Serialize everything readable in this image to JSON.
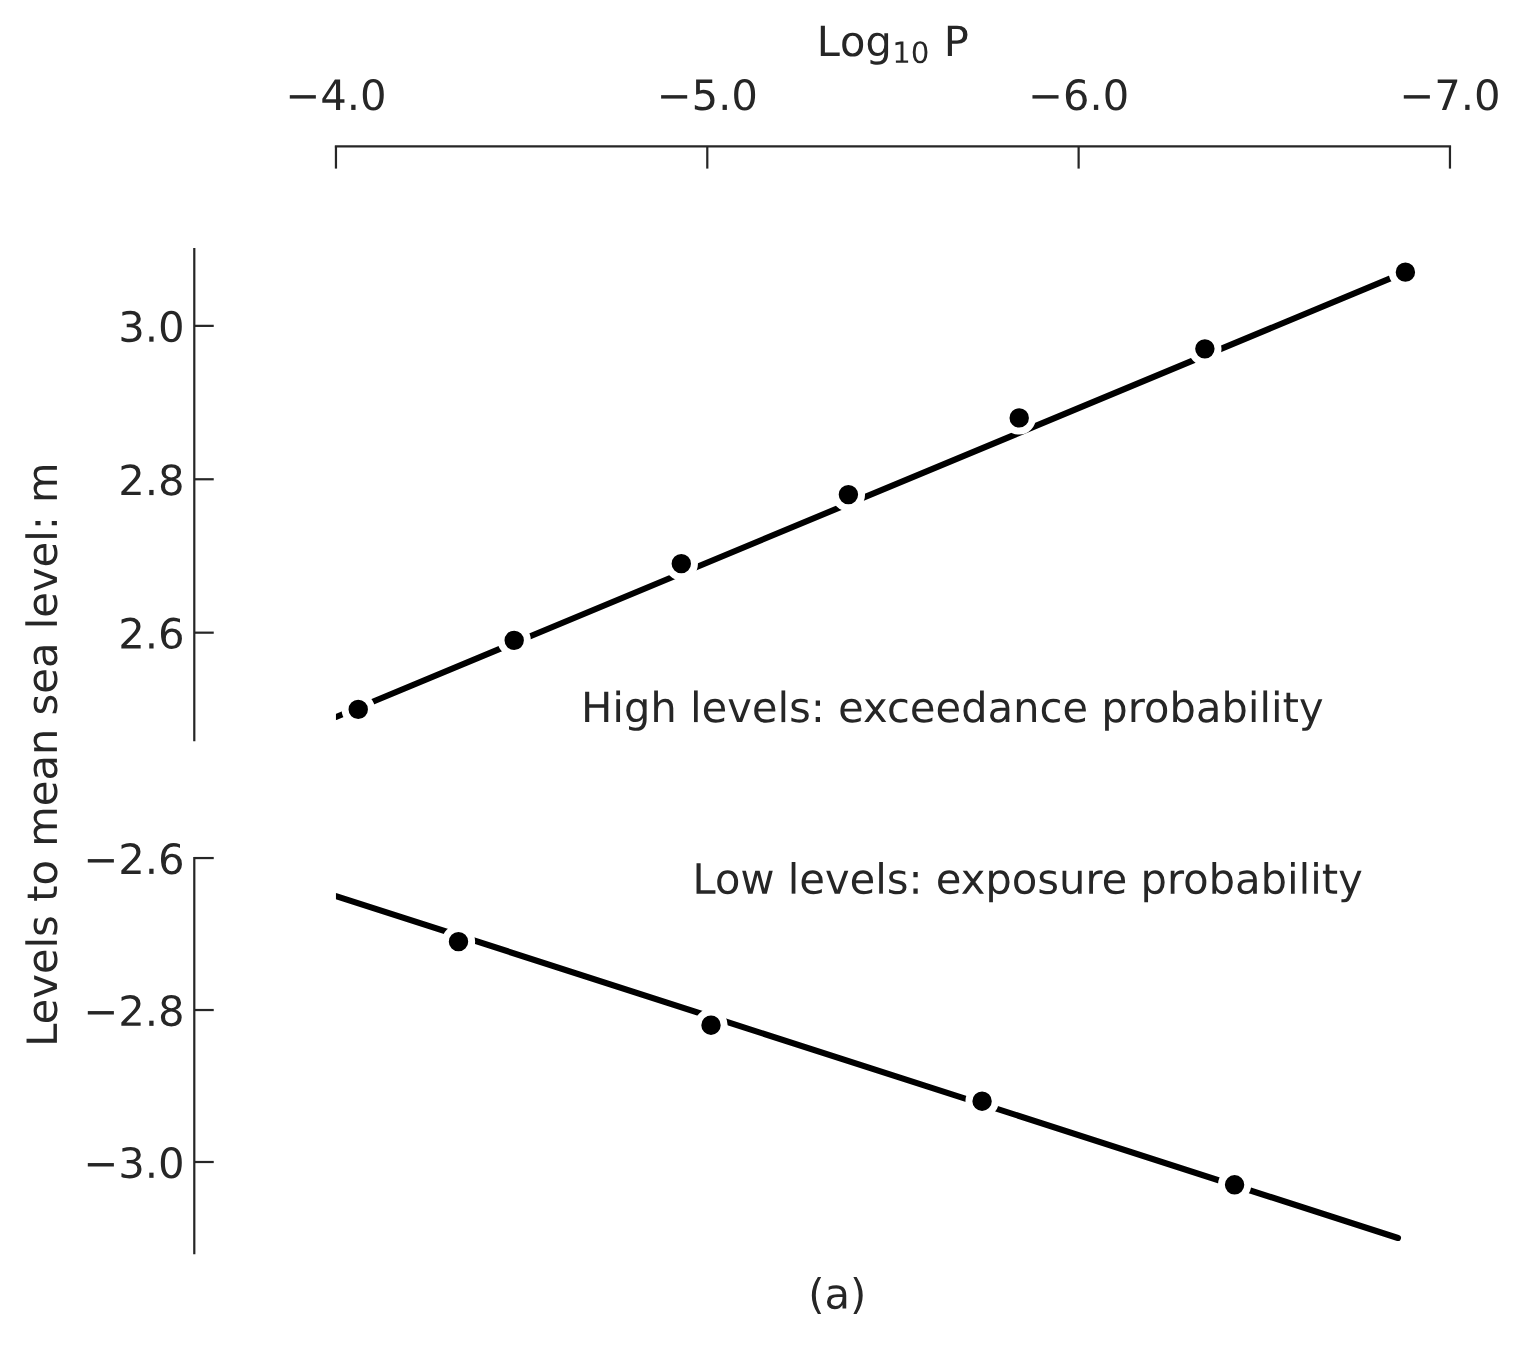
{
  "chart_data": [
    {
      "type": "scatter",
      "xlabel": "Log$_{10}$ P",
      "ylabel": "Levels to mean sea level: m",
      "xlim": [
        -4.0,
        -7.0
      ],
      "xticks": [
        {
          "value": -4.0,
          "label": "−4.0"
        },
        {
          "value": -5.0,
          "label": "−5.0"
        },
        {
          "value": -6.0,
          "label": "−6.0"
        },
        {
          "value": -7.0,
          "label": "−7.0"
        }
      ],
      "ylim": [
        2.46,
        3.1
      ],
      "yticks": [
        {
          "value": 2.6,
          "label": "2.6"
        },
        {
          "value": 2.8,
          "label": "2.8"
        },
        {
          "value": 3.0,
          "label": "3.0"
        }
      ],
      "grid": false,
      "series": [
        {
          "marker": "circle",
          "color": "#000000",
          "x": [
            -4.06,
            -4.48,
            -4.93,
            -5.38,
            -5.84,
            -6.34,
            -6.88
          ],
          "values": [
            2.5,
            2.59,
            2.69,
            2.78,
            2.88,
            2.97,
            3.07
          ]
        },
        {
          "type": "line",
          "marker": "none",
          "color": "#000000",
          "x": [
            -4.0,
            -6.88
          ],
          "values": [
            2.49,
            3.07
          ]
        }
      ],
      "annotations": [
        "High levels: exceedance probability"
      ]
    },
    {
      "type": "scatter",
      "xlim": [
        -4.0,
        -7.0
      ],
      "ylim": [
        -3.12,
        -2.6
      ],
      "yticks": [
        {
          "value": -2.6,
          "label": "−2.6"
        },
        {
          "value": -2.8,
          "label": "−2.8"
        },
        {
          "value": -3.0,
          "label": "−3.0"
        }
      ],
      "tick_labels": "y",
      "grid": false,
      "series": [
        {
          "marker": "circle",
          "color": "#000000",
          "x": [
            -4.33,
            -5.01,
            -5.74,
            -6.42
          ],
          "values": [
            -2.71,
            -2.82,
            -2.92,
            -3.03
          ]
        },
        {
          "type": "line",
          "marker": "none",
          "color": "#000000",
          "x": [
            -4.0,
            -6.86
          ],
          "values": [
            -2.65,
            -3.1
          ]
        }
      ],
      "annotations": [
        "Low levels: exposure probability",
        "(a)"
      ]
    }
  ]
}
